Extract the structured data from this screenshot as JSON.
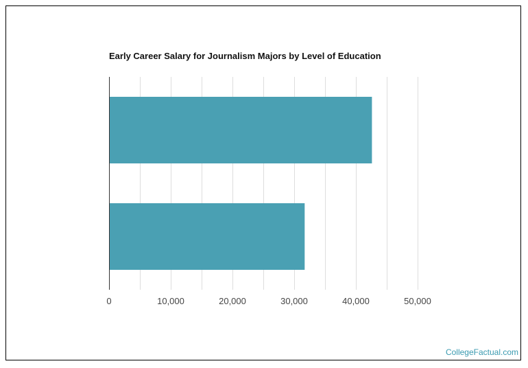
{
  "title": "Early Career Salary for Journalism Majors by Level of Education",
  "credit": "CollegeFactual.com",
  "colors": {
    "bar": "#4aa0b3",
    "grid": "#dddddd",
    "axis": "#333333",
    "credit": "#3a9ab0"
  },
  "chart_data": {
    "type": "bar",
    "orientation": "horizontal",
    "title": "Early Career Salary for Journalism Majors by Level of Education",
    "categories": [
      "",
      ""
    ],
    "values": [
      42600,
      31700
    ],
    "xlim": [
      0,
      50000
    ],
    "xticks": [
      0,
      10000,
      20000,
      30000,
      40000,
      50000
    ],
    "xtick_labels": [
      "0",
      "10,000",
      "20,000",
      "30,000",
      "40,000",
      "50,000"
    ],
    "minor_grid_step": 5000,
    "grid": true,
    "legend": "none"
  }
}
